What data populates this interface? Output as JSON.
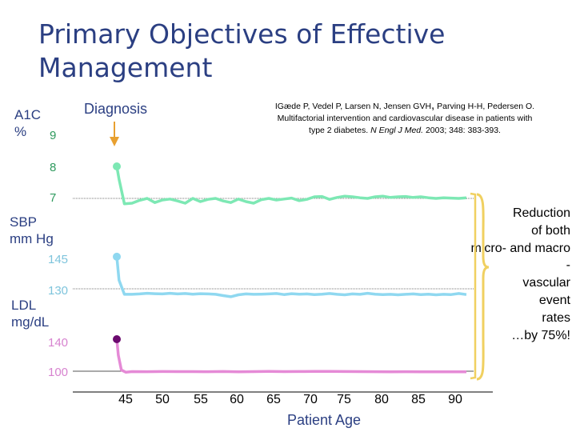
{
  "slide": {
    "title_line1": "Primary Objectives of Effective",
    "title_line2": "Management",
    "diagnosis_label": "Diagnosis",
    "citation": {
      "line1_a": "IGæde P, Vedel P, Larsen N, Jensen GVH",
      "line1_sep": ",",
      "line1_b": " Parving H-H, Pedersen O.",
      "line2": "Multifactorial intervention and cardiovascular disease in patients with",
      "line3_a": "type 2 diabetes. ",
      "line3_journal": "N Engl J Med.",
      "line3_b": " 2003; 348: 383-393."
    },
    "callout": [
      "Reduction",
      "of both",
      "micro- and macro",
      "-",
      "vascular",
      "event",
      "rates",
      "…by 75%!"
    ],
    "colors": {
      "title": "#2b3f82",
      "a1c": "#7de8b4",
      "sbp": "#8fd8f0",
      "ldl": "#e58ad6",
      "ldl_marker": "#6b0a6e",
      "brace": "#f0d060"
    }
  },
  "chart_data": {
    "type": "line",
    "xlabel": "Patient Age",
    "x_ticks": [
      "45",
      "50",
      "55",
      "60",
      "65",
      "70",
      "75",
      "80",
      "85",
      "90"
    ],
    "panels": [
      {
        "name_lines": [
          "A1C",
          "%"
        ],
        "ticks": [
          "9",
          "8",
          "7"
        ],
        "reference": "7",
        "series": {
          "x": [
            45,
            45.3,
            46,
            47,
            48,
            49,
            50,
            51,
            52,
            53,
            54,
            55,
            56,
            57,
            58,
            59,
            60,
            61,
            62,
            63,
            64,
            65,
            66,
            67,
            68,
            69,
            70,
            71,
            72,
            73,
            74,
            75,
            76,
            77,
            78,
            79,
            80,
            81,
            82,
            83,
            84,
            85,
            86,
            87,
            88,
            89,
            90,
            91
          ],
          "y": [
            8.0,
            7.6,
            6.83,
            6.85,
            6.94,
            7.0,
            6.87,
            6.95,
            6.98,
            6.92,
            6.85,
            7.0,
            6.9,
            6.97,
            7.0,
            6.92,
            6.87,
            6.98,
            6.9,
            6.85,
            6.96,
            7.0,
            6.95,
            6.98,
            7.01,
            6.93,
            6.97,
            7.05,
            7.06,
            6.97,
            7.03,
            7.07,
            7.05,
            7.02,
            7.0,
            7.05,
            7.07,
            7.03,
            7.05,
            7.06,
            7.03,
            7.05,
            7.02,
            7.0,
            7.02,
            7.01,
            7.0,
            7.02
          ]
        }
      },
      {
        "name_lines": [
          "SBP",
          "mm Hg"
        ],
        "ticks": [
          "145",
          "130"
        ],
        "reference": "130",
        "series": {
          "x": [
            45,
            45.3,
            46,
            47,
            48,
            49,
            50,
            51,
            52,
            53,
            54,
            55,
            56,
            57,
            58,
            59,
            60,
            61,
            62,
            63,
            64,
            65,
            66,
            67,
            68,
            69,
            70,
            71,
            72,
            73,
            74,
            75,
            76,
            77,
            78,
            79,
            80,
            81,
            82,
            83,
            84,
            85,
            86,
            87,
            88,
            89,
            90,
            91
          ],
          "y": [
            145,
            134,
            127.4,
            127.4,
            127.6,
            127.9,
            127.7,
            127.6,
            127.9,
            127.6,
            127.8,
            127.5,
            127.7,
            127.6,
            127.4,
            126.8,
            126.3,
            127.2,
            127.6,
            127.4,
            127.5,
            127.6,
            127.8,
            127.3,
            127.7,
            127.5,
            127.6,
            127.3,
            127.5,
            127.8,
            127.4,
            127.2,
            127.6,
            127.4,
            127.9,
            127.5,
            127.3,
            127.4,
            127.2,
            127.4,
            127.6,
            127.3,
            127.5,
            127.2,
            127.4,
            127.3,
            127.8,
            127.3
          ]
        }
      },
      {
        "name_lines": [
          "LDL",
          "mg/dL"
        ],
        "ticks": [
          "140",
          "100"
        ],
        "reference": "100",
        "series": {
          "x": [
            45,
            45.2,
            45.6,
            46.2,
            47,
            49,
            51,
            53,
            55,
            57,
            59,
            61,
            63,
            65,
            67,
            69,
            71,
            73,
            75,
            77,
            79,
            81,
            83,
            85,
            87,
            89,
            91
          ],
          "y": [
            140,
            120,
            101.5,
            98.7,
            99.5,
            99.4,
            99.6,
            99.5,
            99.5,
            99.4,
            99.6,
            99.3,
            99.5,
            99.7,
            99.5,
            99.6,
            99.8,
            99.7,
            99.6,
            99.5,
            99.4,
            99.3,
            99.4,
            99.3,
            99.2,
            99.2,
            99.2
          ]
        }
      }
    ]
  }
}
